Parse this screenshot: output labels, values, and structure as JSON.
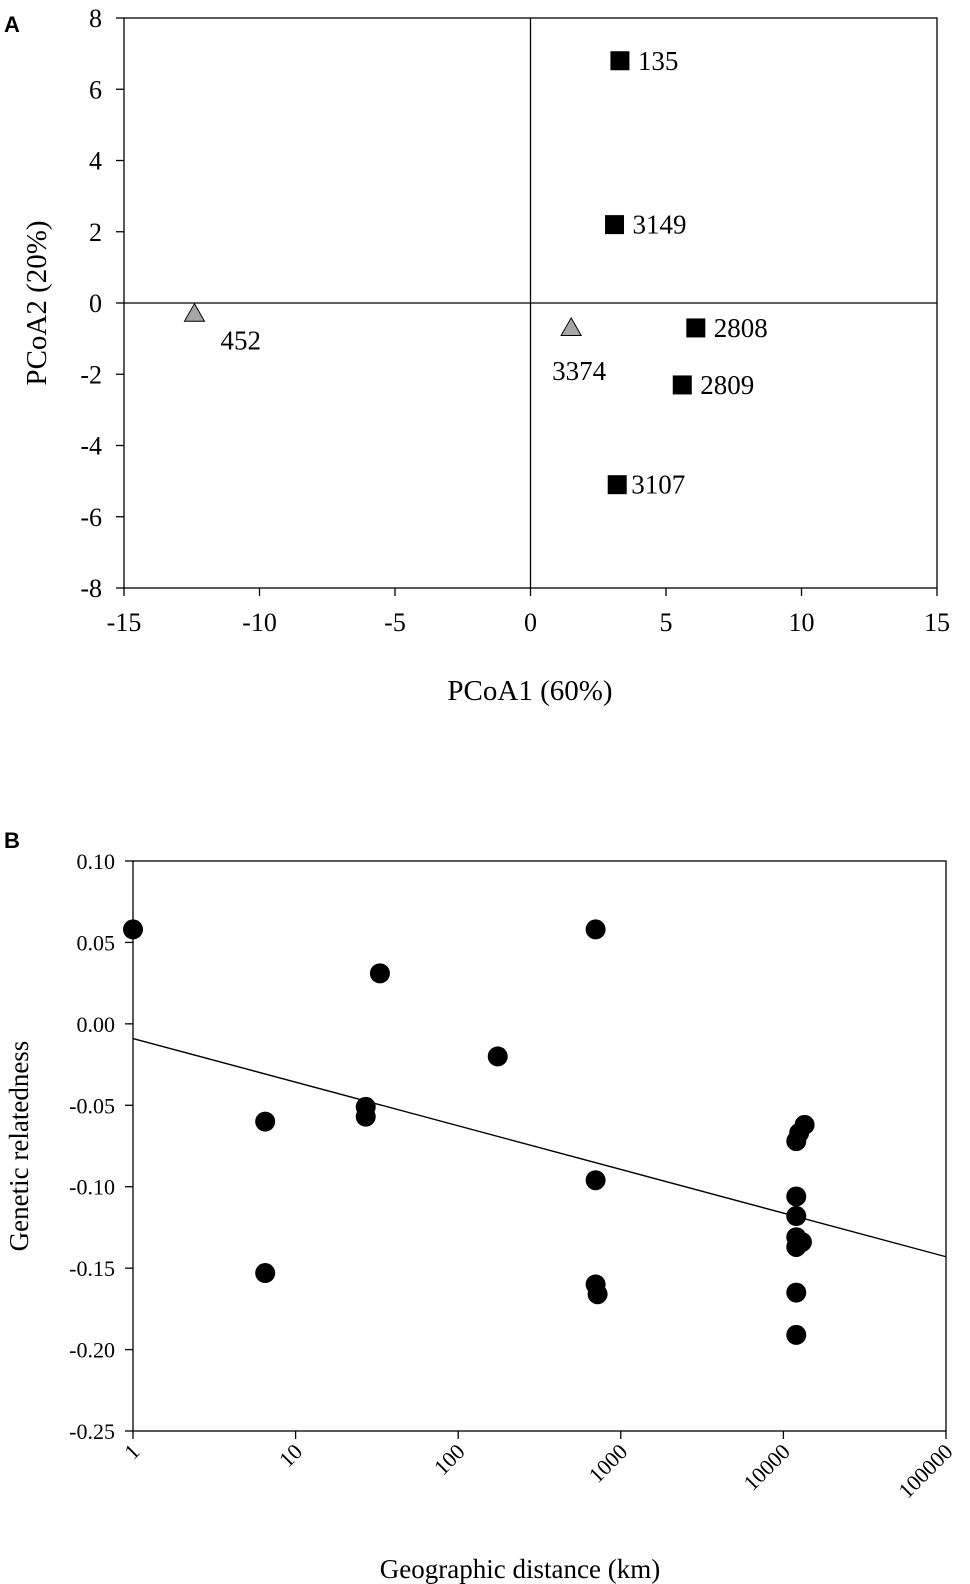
{
  "chart_data": [
    {
      "panel_label": "A",
      "type": "scatter",
      "xlabel": "PCoA1 (60%)",
      "ylabel": "PCoA2 (20%)",
      "xlim": [
        -15,
        15
      ],
      "ylim": [
        -8,
        8
      ],
      "xticks": [
        -15,
        -10,
        -5,
        0,
        5,
        10,
        15
      ],
      "yticks": [
        -8,
        -6,
        -4,
        -2,
        0,
        2,
        4,
        6,
        8
      ],
      "reference_lines": {
        "x": 0,
        "y": 0
      },
      "points": [
        {
          "label": "452",
          "x": -12.4,
          "y": -0.3,
          "marker": "triangle",
          "color": "#a6a6a6"
        },
        {
          "label": "3374",
          "x": 1.5,
          "y": -0.7,
          "marker": "triangle",
          "color": "#a6a6a6"
        },
        {
          "label": "135",
          "x": 3.3,
          "y": 6.8,
          "marker": "square",
          "color": "#000000"
        },
        {
          "label": "3149",
          "x": 3.1,
          "y": 2.2,
          "marker": "square",
          "color": "#000000"
        },
        {
          "label": "2808",
          "x": 6.1,
          "y": -0.7,
          "marker": "square",
          "color": "#000000"
        },
        {
          "label": "2809",
          "x": 5.6,
          "y": -2.3,
          "marker": "square",
          "color": "#000000"
        },
        {
          "label": "3107",
          "x": 3.2,
          "y": -5.1,
          "marker": "square",
          "color": "#000000"
        }
      ]
    },
    {
      "panel_label": "B",
      "type": "scatter",
      "xlabel": "Geographic distance (km)",
      "ylabel": "Genetic relatedness",
      "xscale": "log",
      "xlim": [
        1,
        100000
      ],
      "ylim": [
        -0.25,
        0.1
      ],
      "xticks": [
        1,
        10,
        100,
        1000,
        10000,
        100000
      ],
      "xtick_labels": [
        "1",
        "10",
        "100",
        "1000",
        "10000",
        "100000"
      ],
      "yticks": [
        -0.25,
        -0.2,
        -0.15,
        -0.1,
        -0.05,
        0.0,
        0.05,
        0.1
      ],
      "ytick_labels": [
        "-0.25",
        "-0.20",
        "-0.15",
        "-0.10",
        "-0.05",
        "0.00",
        "0.05",
        "0.10"
      ],
      "marker_color": "#000000",
      "points": [
        {
          "x": 1,
          "y": 0.058
        },
        {
          "x": 6.5,
          "y": -0.06
        },
        {
          "x": 6.5,
          "y": -0.153
        },
        {
          "x": 27,
          "y": -0.051
        },
        {
          "x": 27,
          "y": -0.057
        },
        {
          "x": 33,
          "y": 0.031
        },
        {
          "x": 175,
          "y": -0.02
        },
        {
          "x": 700,
          "y": 0.058
        },
        {
          "x": 700,
          "y": -0.096
        },
        {
          "x": 700,
          "y": -0.16
        },
        {
          "x": 720,
          "y": -0.166
        },
        {
          "x": 12000,
          "y": -0.072
        },
        {
          "x": 12500,
          "y": -0.067
        },
        {
          "x": 13500,
          "y": -0.062
        },
        {
          "x": 12000,
          "y": -0.106
        },
        {
          "x": 12000,
          "y": -0.118
        },
        {
          "x": 12000,
          "y": -0.131
        },
        {
          "x": 13000,
          "y": -0.134
        },
        {
          "x": 12000,
          "y": -0.137
        },
        {
          "x": 12000,
          "y": -0.165
        },
        {
          "x": 12000,
          "y": -0.191
        }
      ],
      "regression_line": {
        "x": [
          1,
          100000
        ],
        "y": [
          -0.009,
          -0.143
        ]
      }
    }
  ]
}
